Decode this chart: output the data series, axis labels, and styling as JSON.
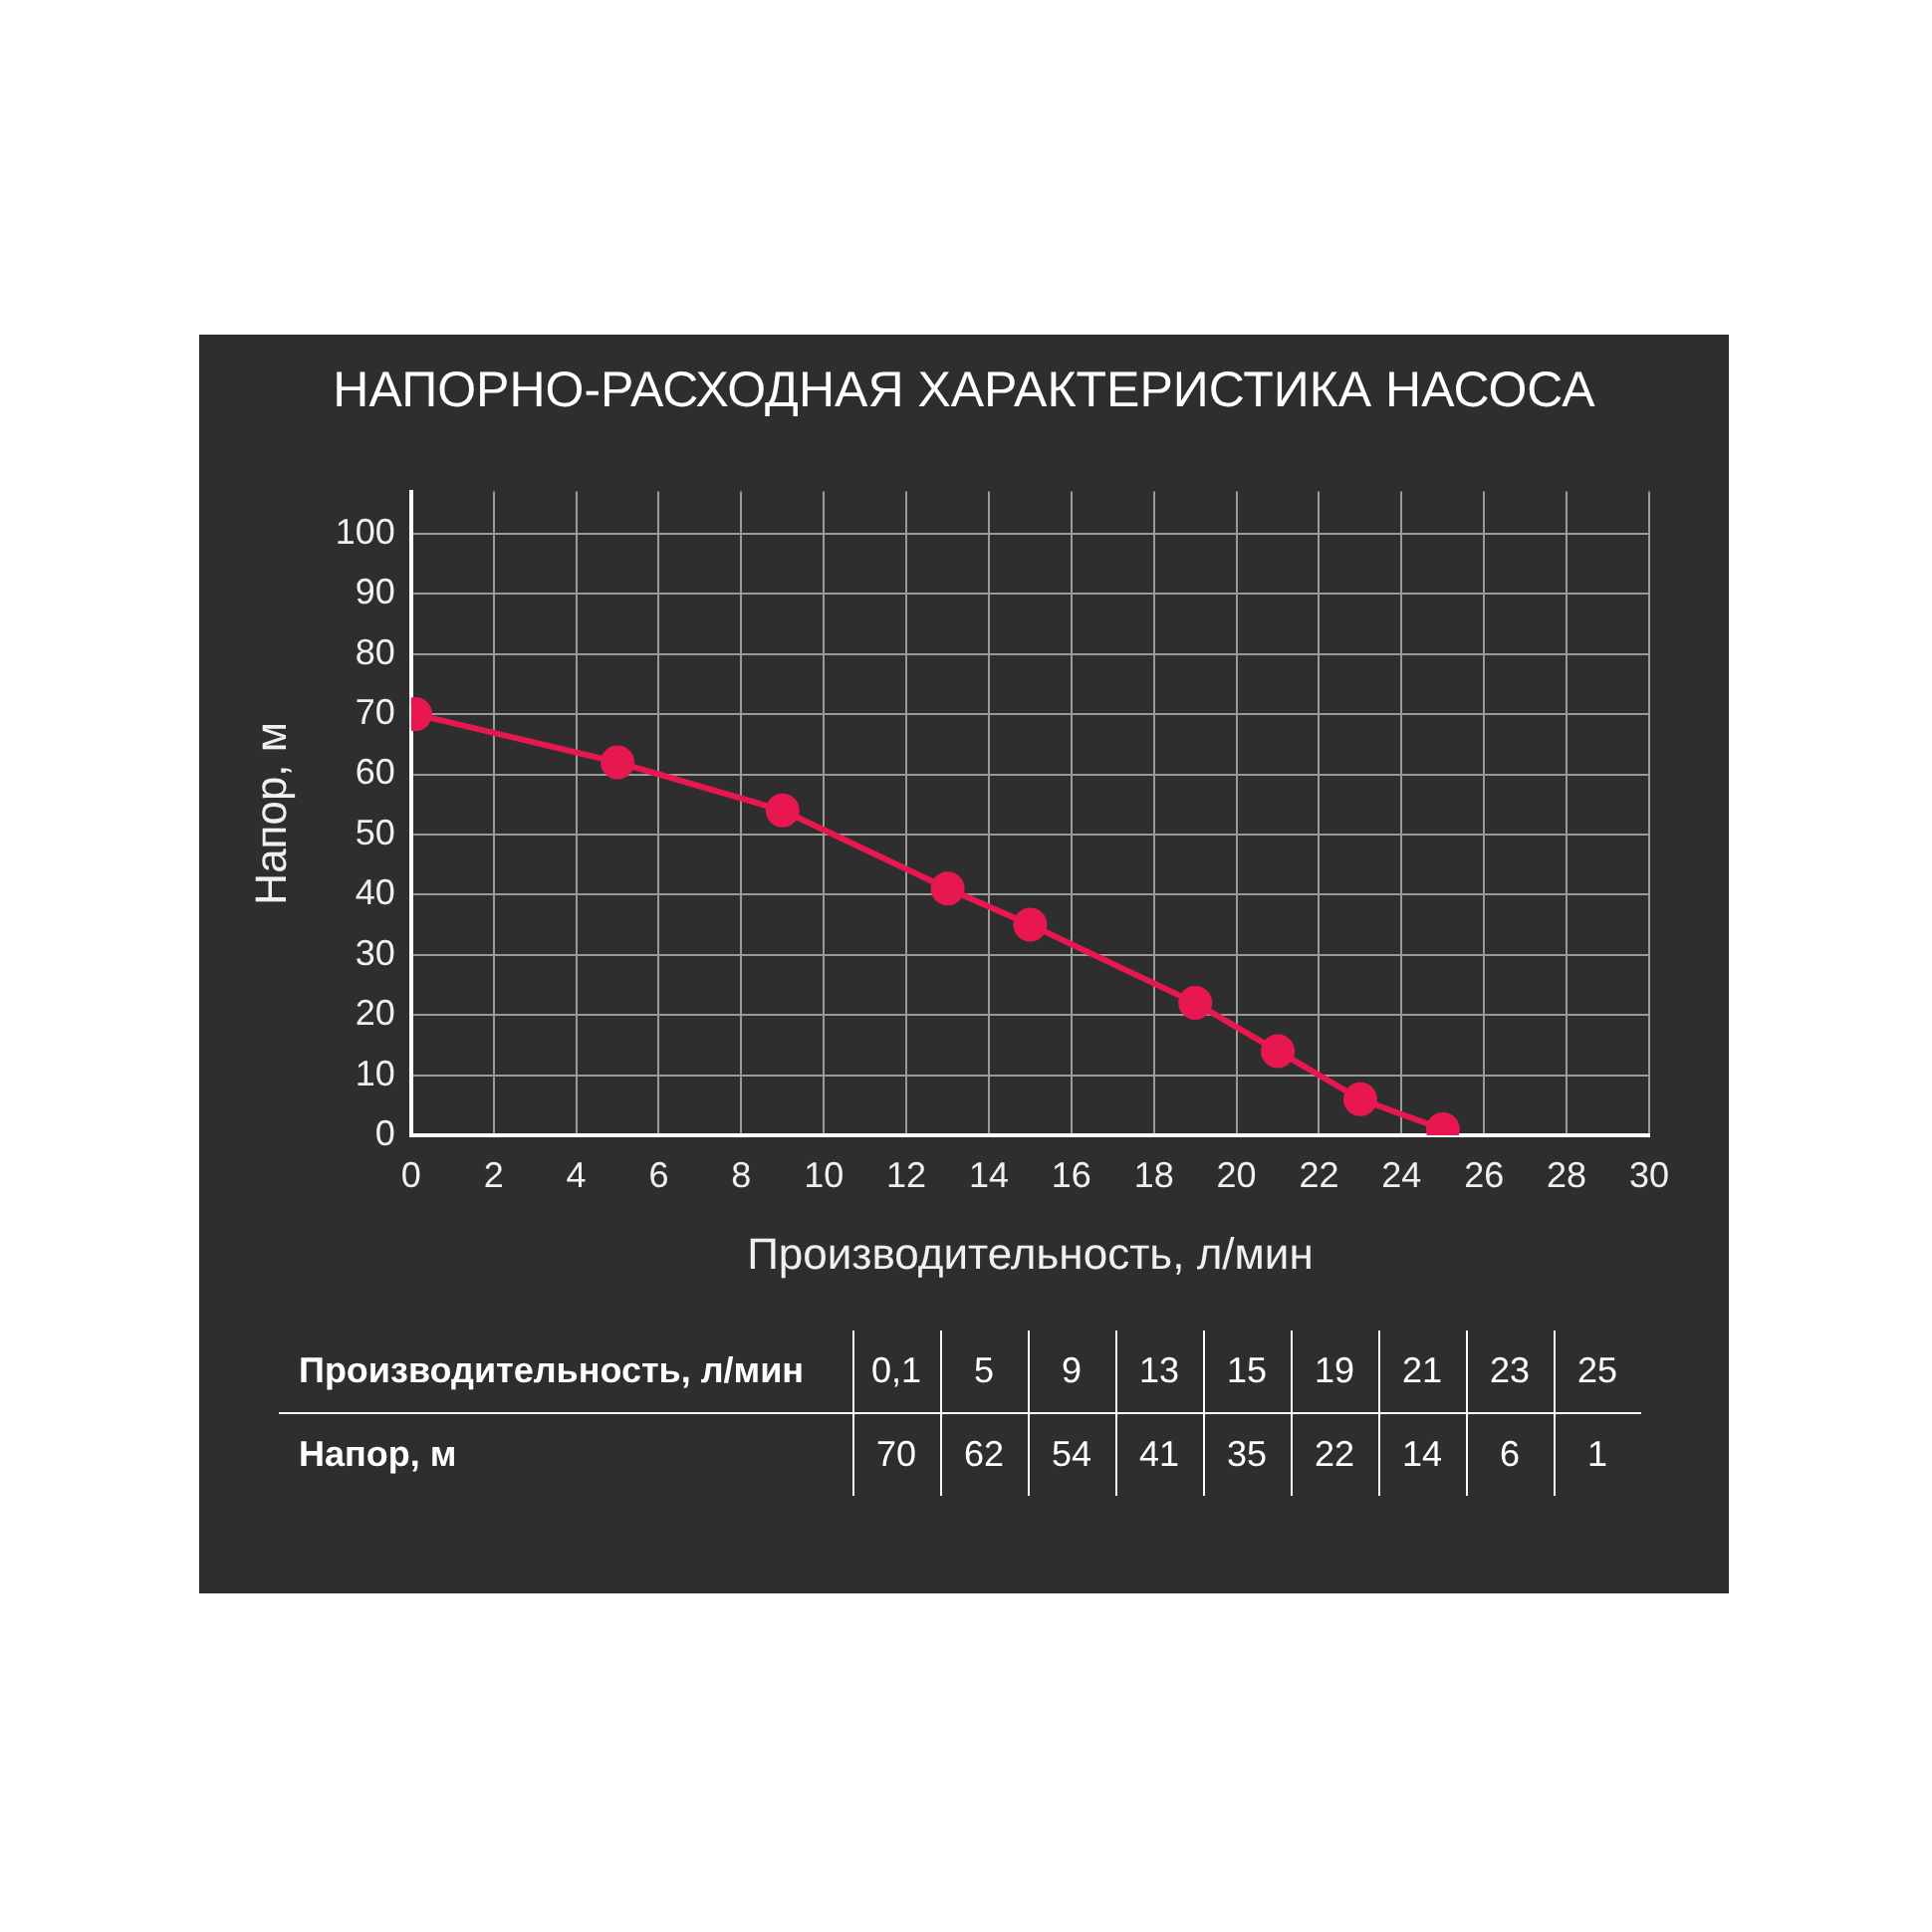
{
  "chart_data": {
    "type": "line",
    "title": "НАПОРНО-РАСХОДНАЯ ХАРАКТЕРИСТИКА НАСОСА",
    "xlabel": "Производительность, л/мин",
    "ylabel": "Напор, м",
    "x": [
      0.1,
      5,
      9,
      13,
      15,
      19,
      21,
      23,
      25
    ],
    "series": [
      {
        "color": "#e8174f",
        "values": [
          70,
          62,
          54,
          41,
          35,
          22,
          14,
          6,
          1
        ]
      }
    ],
    "xlim": [
      0,
      30
    ],
    "xticks": [
      0,
      2,
      4,
      6,
      8,
      10,
      12,
      14,
      16,
      18,
      20,
      22,
      24,
      26,
      28,
      30
    ],
    "ylim": [
      0,
      107
    ],
    "yticks": [
      0,
      10,
      20,
      30,
      40,
      50,
      60,
      70,
      80,
      90,
      100
    ],
    "grid": true,
    "marker": "circle",
    "line_style": "solid",
    "legend": false,
    "annotations": [
      "0,1",
      "5",
      "9",
      "13",
      "15",
      "19",
      "21",
      "23",
      "25",
      "70",
      "62",
      "54",
      "41",
      "35",
      "22",
      "14",
      "6",
      "1"
    ]
  }
}
